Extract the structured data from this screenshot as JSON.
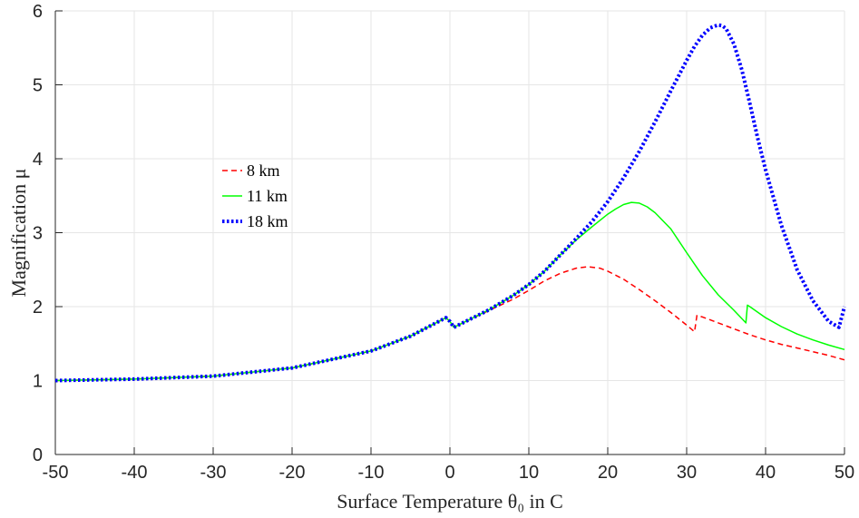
{
  "chart_data": {
    "type": "line",
    "xlabel": "Surface Temperature θ₀ in C",
    "ylabel": "Magnification μ",
    "xlim": [
      -50,
      50
    ],
    "ylim": [
      0,
      6
    ],
    "xticks": [
      "-50",
      "-40",
      "-30",
      "-20",
      "-10",
      "0",
      "10",
      "20",
      "30",
      "40",
      "50"
    ],
    "yticks": [
      "0",
      "1",
      "2",
      "3",
      "4",
      "5",
      "6"
    ],
    "grid": true,
    "legend_position": "center-left",
    "series": [
      {
        "name": "8 km",
        "color": "#ff0000",
        "style": "dashed",
        "x": [
          -50,
          -40,
          -30,
          -20,
          -10,
          -5,
          -0.5,
          0,
          0.5,
          2,
          5,
          8,
          10,
          12,
          14,
          16,
          17.5,
          19,
          20,
          22,
          24,
          26,
          28,
          30,
          31,
          31.3,
          32,
          34,
          36,
          38,
          40,
          42,
          44,
          46,
          48,
          50
        ],
        "y": [
          1.0,
          1.02,
          1.06,
          1.17,
          1.4,
          1.6,
          1.85,
          1.8,
          1.72,
          1.8,
          1.95,
          2.1,
          2.22,
          2.35,
          2.45,
          2.52,
          2.54,
          2.52,
          2.48,
          2.37,
          2.23,
          2.08,
          1.92,
          1.75,
          1.66,
          1.88,
          1.86,
          1.78,
          1.7,
          1.62,
          1.55,
          1.49,
          1.44,
          1.39,
          1.34,
          1.28
        ]
      },
      {
        "name": "11 km",
        "color": "#00ff00",
        "style": "solid",
        "x": [
          -50,
          -40,
          -30,
          -20,
          -10,
          -5,
          -0.5,
          0,
          0.5,
          2,
          5,
          8,
          10,
          12,
          14,
          16,
          18,
          20,
          21,
          22,
          23,
          24,
          25,
          26,
          28,
          30,
          32,
          34,
          36,
          37.5,
          37.7,
          38,
          40,
          42,
          44,
          46,
          48,
          50
        ],
        "y": [
          1.0,
          1.02,
          1.06,
          1.17,
          1.4,
          1.6,
          1.85,
          1.8,
          1.72,
          1.8,
          1.96,
          2.15,
          2.3,
          2.48,
          2.7,
          2.9,
          3.08,
          3.25,
          3.32,
          3.38,
          3.41,
          3.4,
          3.35,
          3.27,
          3.05,
          2.73,
          2.42,
          2.16,
          1.95,
          1.78,
          2.02,
          2.0,
          1.85,
          1.73,
          1.63,
          1.55,
          1.48,
          1.42
        ]
      },
      {
        "name": "18 km",
        "color": "#0000ff",
        "style": "dotted",
        "x": [
          -50,
          -40,
          -30,
          -20,
          -10,
          -5,
          -0.5,
          0,
          0.5,
          2,
          5,
          8,
          10,
          12,
          14,
          16,
          18,
          20,
          22,
          24,
          26,
          28,
          30,
          31,
          32,
          33,
          34,
          34.5,
          35,
          36,
          37,
          38,
          39,
          40,
          42,
          44,
          46,
          48,
          49.3,
          50
        ],
        "y": [
          1.0,
          1.02,
          1.06,
          1.17,
          1.4,
          1.6,
          1.85,
          1.8,
          1.72,
          1.8,
          1.96,
          2.15,
          2.3,
          2.48,
          2.7,
          2.92,
          3.15,
          3.42,
          3.74,
          4.1,
          4.5,
          4.92,
          5.33,
          5.52,
          5.67,
          5.77,
          5.81,
          5.8,
          5.76,
          5.55,
          5.2,
          4.75,
          4.28,
          3.85,
          3.1,
          2.5,
          2.08,
          1.8,
          1.72,
          2.0
        ]
      }
    ]
  }
}
